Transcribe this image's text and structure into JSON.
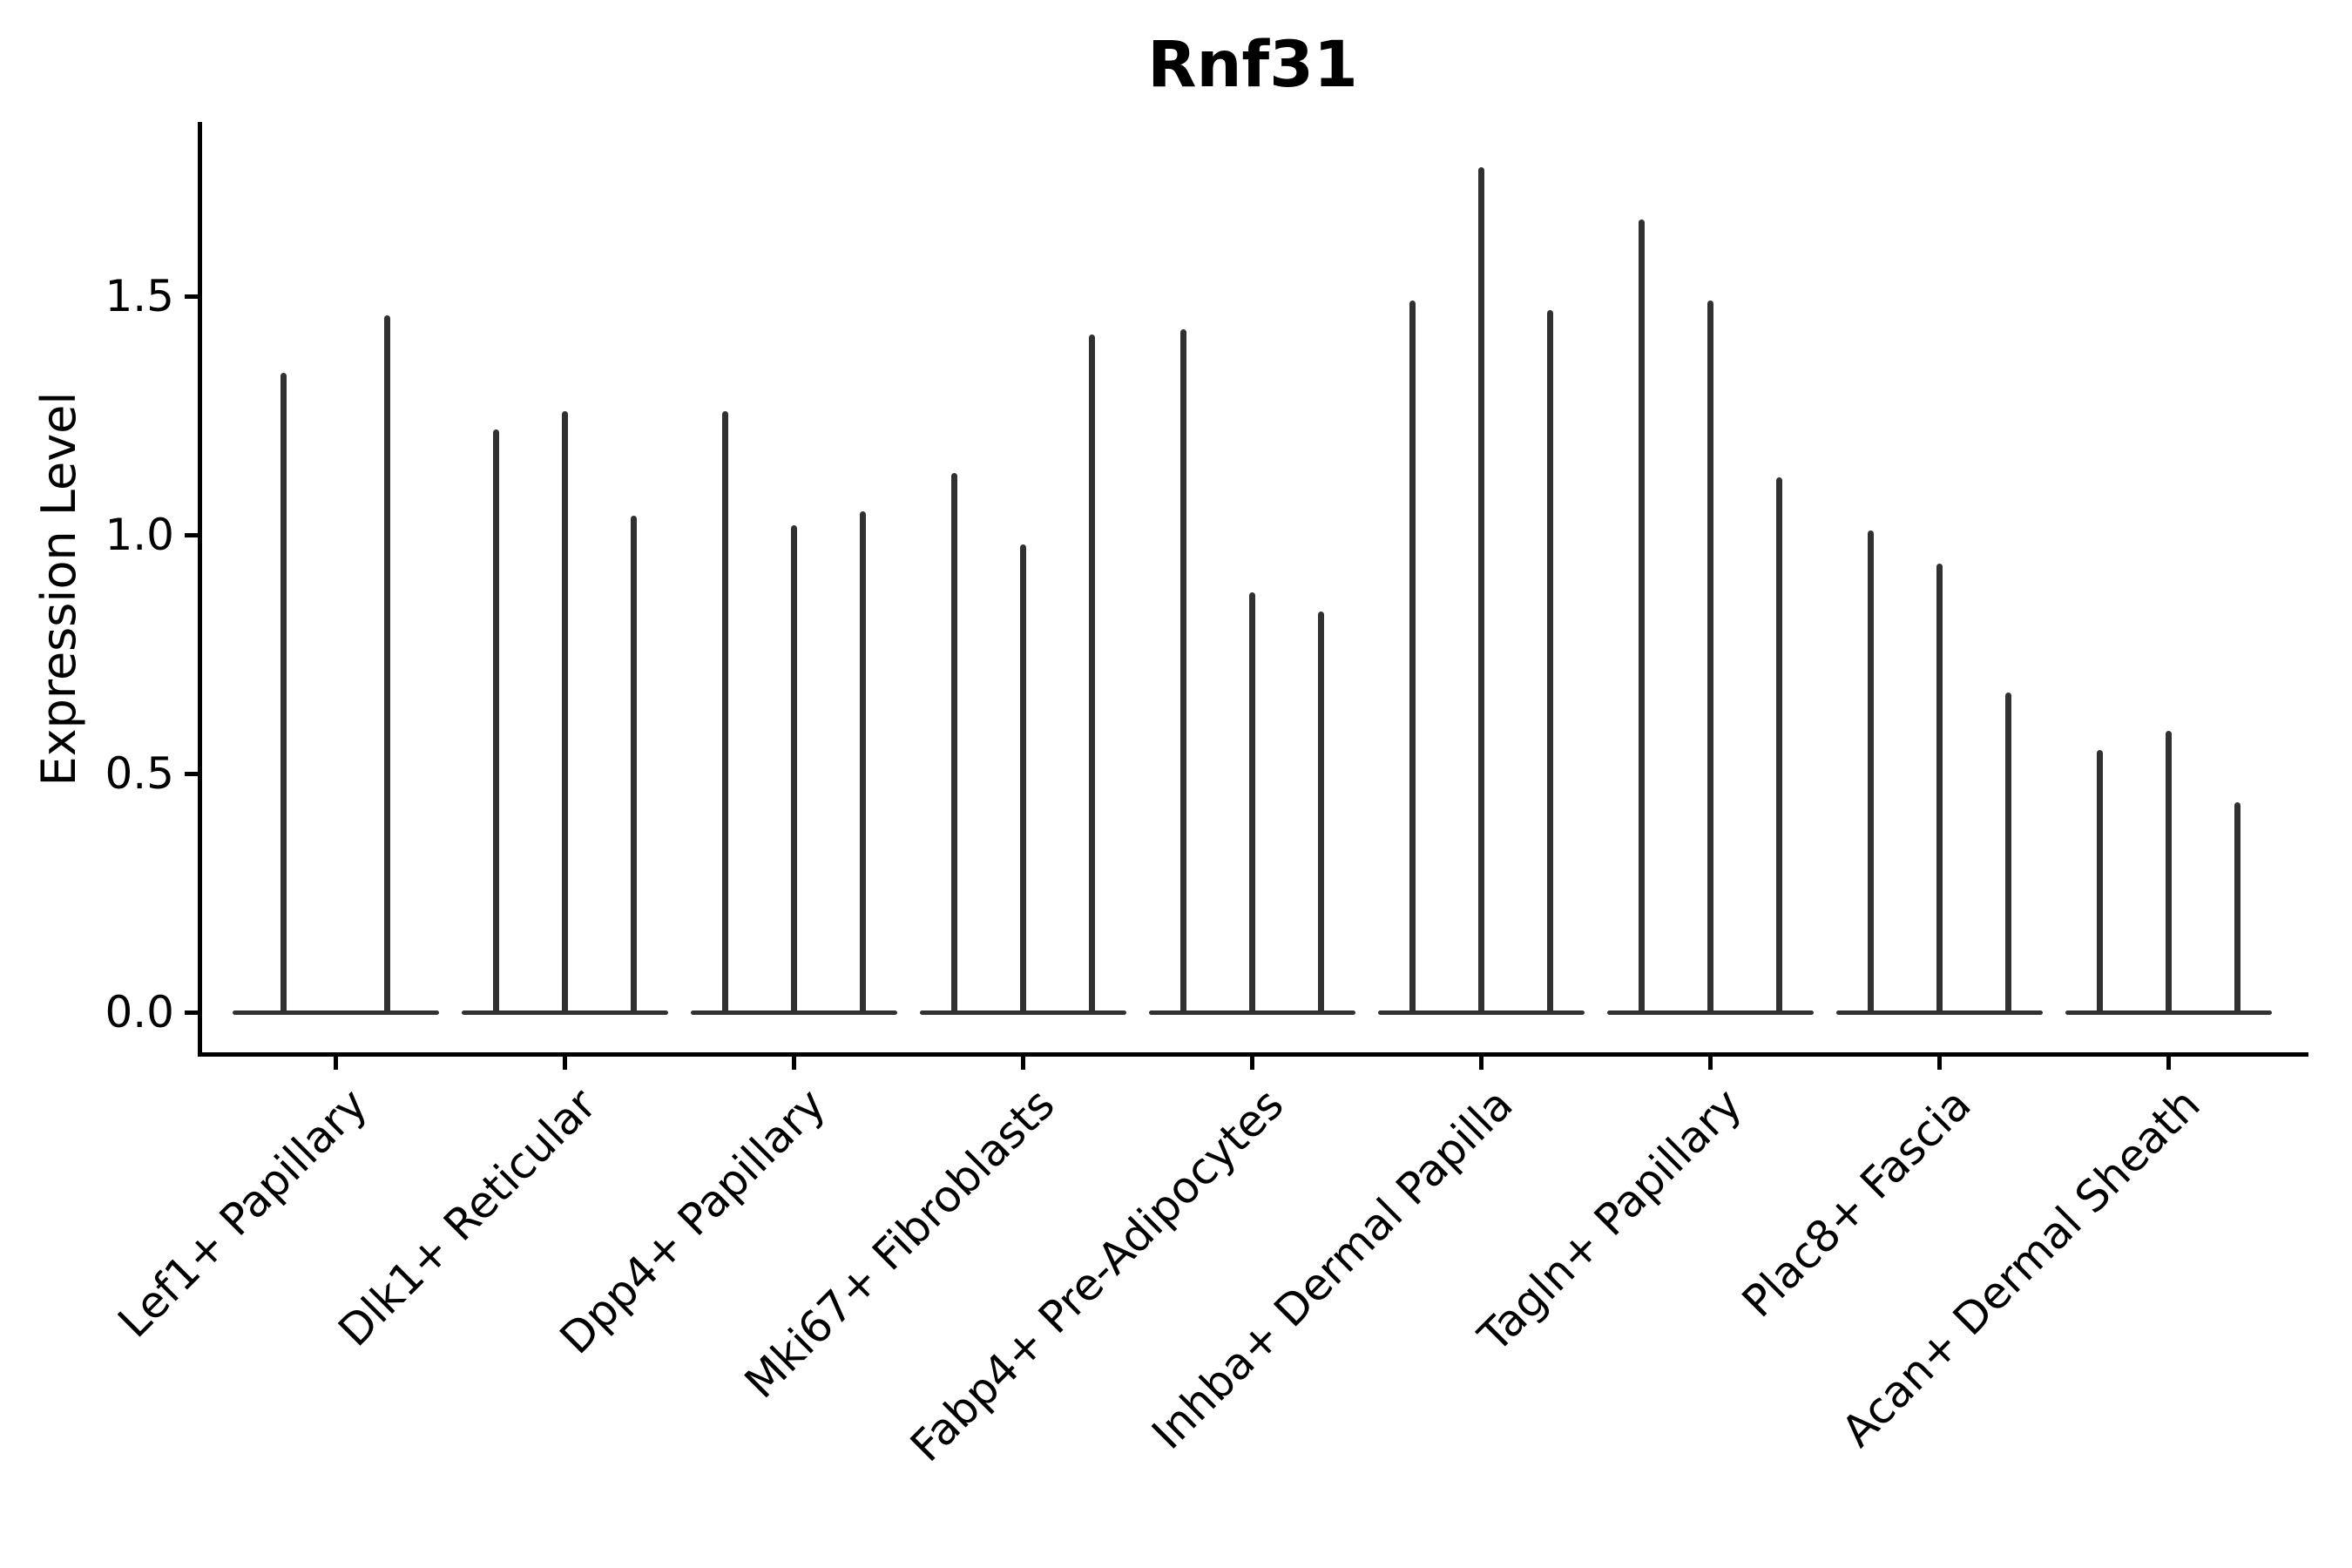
{
  "title": "Rnf31",
  "y_axis": {
    "label": "Expression Level",
    "tick_labels": [
      "0.0",
      "0.5",
      "1.0",
      "1.5"
    ]
  },
  "colors": {
    "violin": "#313131",
    "axis": "#000000",
    "text": "#000000",
    "background": "#ffffff"
  },
  "chart_data": {
    "type": "violin",
    "title": "Rnf31",
    "xlabel": "",
    "ylabel": "Expression Level",
    "yticks": [
      0.0,
      0.5,
      1.0,
      1.5
    ],
    "ylim": [
      -0.09,
      1.86
    ],
    "grid": false,
    "legend": "none",
    "style": "thin spike-like violins with flat bases at zero; violins grouped per category",
    "categories": [
      "Lef1+ Papillary",
      "Dlk1+ Reticular",
      "Dpp4+ Papillary",
      "Mki67+ Fibroblasts",
      "Fabp4+ Pre-Adipocytes",
      "Inhba+ Dermal Papilla",
      "Tagln+ Papillary",
      "Plac8+ Fascia",
      "Acan+ Dermal Sheath"
    ],
    "series": [
      {
        "category": "Lef1+ Papillary",
        "violin_max_values": [
          1.34,
          1.46
        ]
      },
      {
        "category": "Dlk1+ Reticular",
        "violin_max_values": [
          1.22,
          1.26,
          1.04
        ]
      },
      {
        "category": "Dpp4+ Papillary",
        "violin_max_values": [
          1.26,
          1.02,
          1.05
        ]
      },
      {
        "category": "Mki67+ Fibroblasts",
        "violin_max_values": [
          1.13,
          0.98,
          1.42
        ]
      },
      {
        "category": "Fabp4+ Pre-Adipocytes",
        "violin_max_values": [
          1.43,
          0.88,
          0.84
        ]
      },
      {
        "category": "Inhba+ Dermal Papilla",
        "violin_max_values": [
          1.49,
          1.77,
          1.47
        ]
      },
      {
        "category": "Tagln+ Papillary",
        "violin_max_values": [
          1.66,
          1.49,
          1.12
        ]
      },
      {
        "category": "Plac8+ Fascia",
        "violin_max_values": [
          1.01,
          0.94,
          0.67
        ]
      },
      {
        "category": "Acan+ Dermal Sheath",
        "violin_max_values": [
          0.55,
          0.59,
          0.44
        ]
      }
    ]
  }
}
